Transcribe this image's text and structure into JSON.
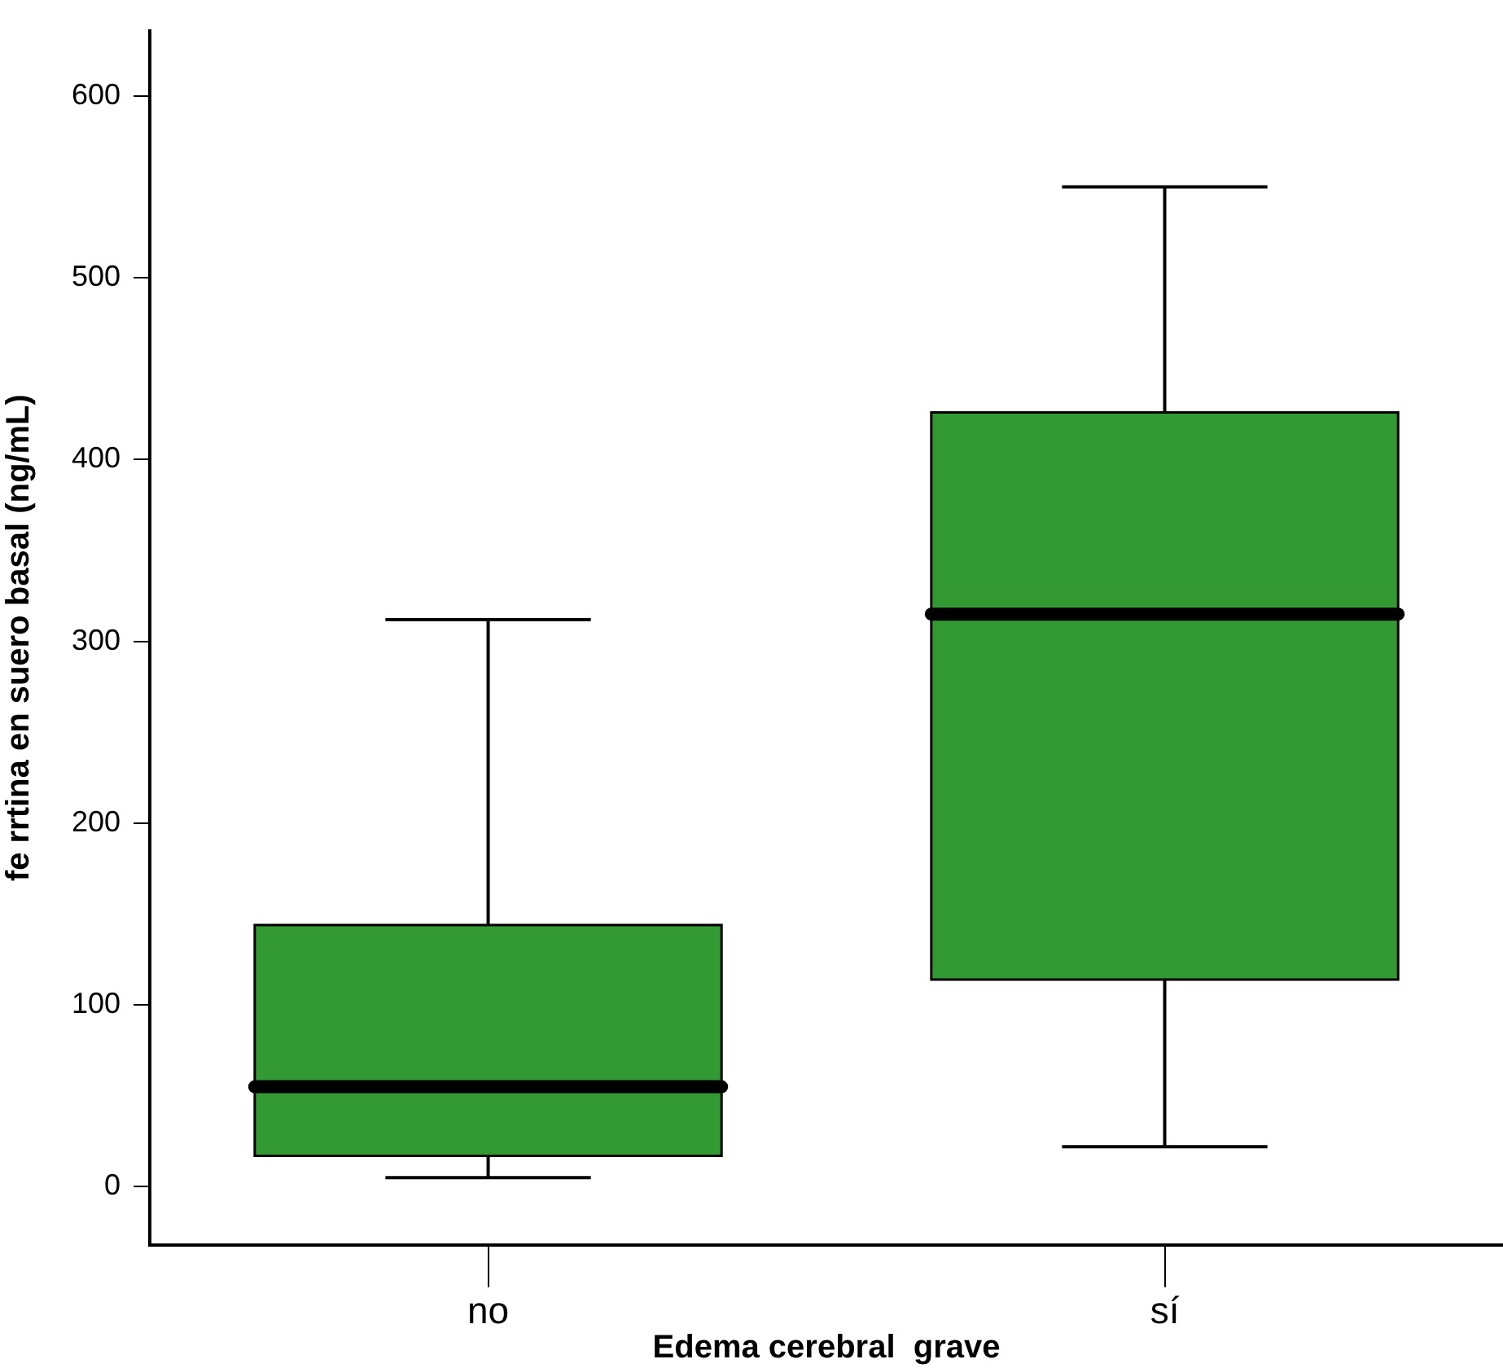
{
  "chart_data": {
    "type": "box",
    "xlabel": "Edema cerebral  grave",
    "ylabel": "fe rrtina en suero basal (ng/mL)",
    "categories": [
      "no",
      "sí"
    ],
    "color": "#339933",
    "boxes": [
      {
        "low": 5,
        "q1": 17,
        "median": 55,
        "q3": 144,
        "high": 312
      },
      {
        "low": 22,
        "q1": 114,
        "median": 315,
        "q3": 426,
        "high": 550
      }
    ],
    "ylim": [
      -32,
      636
    ],
    "yticks": [
      0,
      100,
      200,
      300,
      400,
      500,
      600
    ],
    "grid": false,
    "legend": false
  }
}
